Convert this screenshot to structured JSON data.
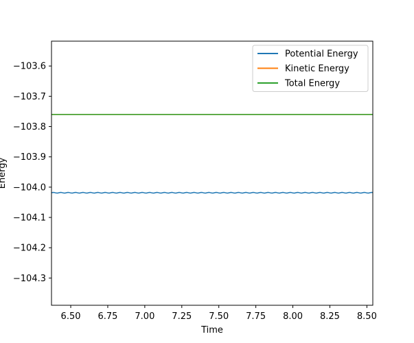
{
  "chart_data": {
    "type": "line",
    "xlabel": "Time",
    "ylabel": "Energy",
    "xlim": [
      6.37,
      8.54
    ],
    "ylim": [
      -104.39,
      -103.518
    ],
    "xticks": [
      6.5,
      6.75,
      7.0,
      7.25,
      7.5,
      7.75,
      8.0,
      8.25,
      8.5
    ],
    "xtick_labels": [
      "6.50",
      "6.75",
      "7.00",
      "7.25",
      "7.50",
      "7.75",
      "8.00",
      "8.25",
      "8.50"
    ],
    "yticks": [
      -103.6,
      -103.7,
      -103.8,
      -103.9,
      -104.0,
      -104.1,
      -104.2,
      -104.3
    ],
    "ytick_labels": [
      "−103.6",
      "−103.7",
      "−103.8",
      "−103.9",
      "−104.0",
      "−104.1",
      "−104.2",
      "−104.3"
    ],
    "grid": false,
    "legend_position": "top-right",
    "series": [
      {
        "name": "Potential Energy",
        "color": "#1f77b4",
        "x_start": 6.37,
        "x_end": 8.54,
        "x_step": 0.01,
        "mean": -104.0185,
        "amplitude": 0.0012,
        "period": 0.05
      },
      {
        "name": "Kinetic Energy",
        "color": "#ff7f0e",
        "x_start": 6.37,
        "x_end": 8.54,
        "x_step": 0.01,
        "mean": -103.76,
        "amplitude": 0,
        "period": 1
      },
      {
        "name": "Total Energy",
        "color": "#2ca02c",
        "x_start": 6.37,
        "x_end": 8.54,
        "x_step": 0.01,
        "mean": -103.76,
        "amplitude": 0,
        "period": 1
      }
    ]
  }
}
